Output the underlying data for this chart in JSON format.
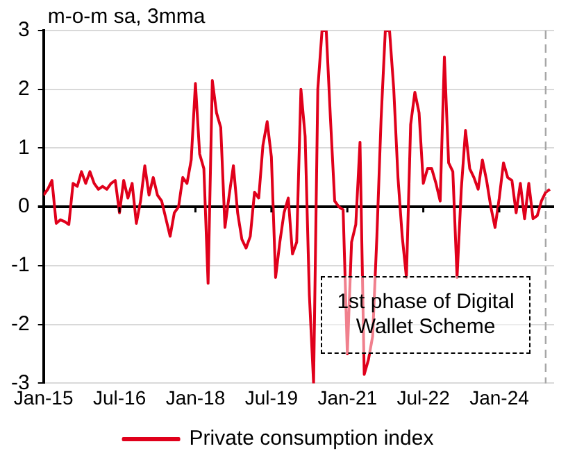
{
  "chart_data": {
    "type": "line",
    "ylabel": "m-o-m sa, 3mma",
    "x": [
      "2015-01",
      "2015-02",
      "2015-03",
      "2015-04",
      "2015-05",
      "2015-06",
      "2015-07",
      "2015-08",
      "2015-09",
      "2015-10",
      "2015-11",
      "2015-12",
      "2016-01",
      "2016-02",
      "2016-03",
      "2016-04",
      "2016-05",
      "2016-06",
      "2016-07",
      "2016-08",
      "2016-09",
      "2016-10",
      "2016-11",
      "2016-12",
      "2017-01",
      "2017-02",
      "2017-03",
      "2017-04",
      "2017-05",
      "2017-06",
      "2017-07",
      "2017-08",
      "2017-09",
      "2017-10",
      "2017-11",
      "2017-12",
      "2018-01",
      "2018-02",
      "2018-03",
      "2018-04",
      "2018-05",
      "2018-06",
      "2018-07",
      "2018-08",
      "2018-09",
      "2018-10",
      "2018-11",
      "2018-12",
      "2019-01",
      "2019-02",
      "2019-03",
      "2019-04",
      "2019-05",
      "2019-06",
      "2019-07",
      "2019-08",
      "2019-09",
      "2019-10",
      "2019-11",
      "2019-12",
      "2020-01",
      "2020-02",
      "2020-03",
      "2020-04",
      "2020-05",
      "2020-06",
      "2020-07",
      "2020-08",
      "2020-09",
      "2020-10",
      "2020-11",
      "2020-12",
      "2021-01",
      "2021-02",
      "2021-03",
      "2021-04",
      "2021-05",
      "2021-06",
      "2021-07",
      "2021-08",
      "2021-09",
      "2021-10",
      "2021-11",
      "2021-12",
      "2022-01",
      "2022-02",
      "2022-03",
      "2022-04",
      "2022-05",
      "2022-06",
      "2022-07",
      "2022-08",
      "2022-09",
      "2022-10",
      "2022-11",
      "2022-12",
      "2023-01",
      "2023-02",
      "2023-03",
      "2023-04",
      "2023-05",
      "2023-06",
      "2023-07",
      "2023-08",
      "2023-09",
      "2023-10",
      "2023-11",
      "2023-12",
      "2024-01",
      "2024-02",
      "2024-03",
      "2024-04",
      "2024-05",
      "2024-06",
      "2024-07",
      "2024-08",
      "2024-09",
      "2024-10",
      "2024-11",
      "2024-12",
      "2025-01"
    ],
    "series": [
      {
        "name": "Private consumption index",
        "color": "#e0001b",
        "values": [
          0.2,
          0.3,
          0.45,
          -0.28,
          -0.22,
          -0.25,
          -0.3,
          0.4,
          0.35,
          0.6,
          0.4,
          0.6,
          0.4,
          0.3,
          0.35,
          0.3,
          0.4,
          0.45,
          -0.1,
          0.45,
          0.15,
          0.4,
          -0.28,
          0.1,
          0.7,
          0.2,
          0.5,
          0.2,
          0.1,
          -0.2,
          -0.5,
          -0.1,
          0.0,
          0.5,
          0.4,
          0.8,
          2.1,
          0.9,
          0.65,
          -1.3,
          2.15,
          1.6,
          1.35,
          -0.35,
          0.2,
          0.7,
          -0.1,
          -0.55,
          -0.7,
          -0.5,
          0.25,
          0.15,
          1.05,
          1.45,
          0.85,
          -1.2,
          -0.6,
          -0.1,
          0.15,
          -0.8,
          -0.6,
          2.0,
          1.2,
          -1.5,
          -3,
          2,
          3,
          3,
          1.5,
          0.1,
          0,
          -0.05,
          -2.5,
          -0.6,
          -0.3,
          1.1,
          -2.85,
          -2.6,
          -2.2,
          -0.5,
          1.5,
          3,
          3,
          2,
          0.5,
          -0.5,
          -1.2,
          1.4,
          1.95,
          1.6,
          0.4,
          0.65,
          0.65,
          0.4,
          0.1,
          2.55,
          0.75,
          0.6,
          -1.2,
          0.3,
          1.3,
          0.65,
          0.5,
          0.3,
          0.8,
          0.45,
          0.0,
          -0.35,
          0.15,
          0.75,
          0.5,
          0.45,
          -0.1,
          0.4,
          -0.2,
          0.4,
          -0.2,
          -0.15,
          0.1,
          0.25,
          0.3
        ]
      }
    ],
    "xlim": [
      "2015-01",
      "2025-02"
    ],
    "xticks": [
      {
        "value": "2015-01",
        "label": "Jan-15"
      },
      {
        "value": "2016-07",
        "label": "Jul-16"
      },
      {
        "value": "2018-01",
        "label": "Jan-18"
      },
      {
        "value": "2019-07",
        "label": "Jul-19"
      },
      {
        "value": "2021-01",
        "label": "Jan-21"
      },
      {
        "value": "2022-07",
        "label": "Jul-22"
      },
      {
        "value": "2024-01",
        "label": "Jan-24"
      }
    ],
    "ylim": [
      -3,
      3
    ],
    "yticks": [
      -3,
      -2,
      -1,
      0,
      1,
      2,
      3
    ],
    "ref_lines": [
      {
        "axis": "x",
        "value": "2024-12",
        "color": "#a6a6a6",
        "line_style": "dashed"
      }
    ],
    "annotations": [
      "1st phase of Digital Wallet Scheme"
    ],
    "grid": "y",
    "legend": "bottom",
    "marker": "none",
    "line_style": "solid"
  }
}
